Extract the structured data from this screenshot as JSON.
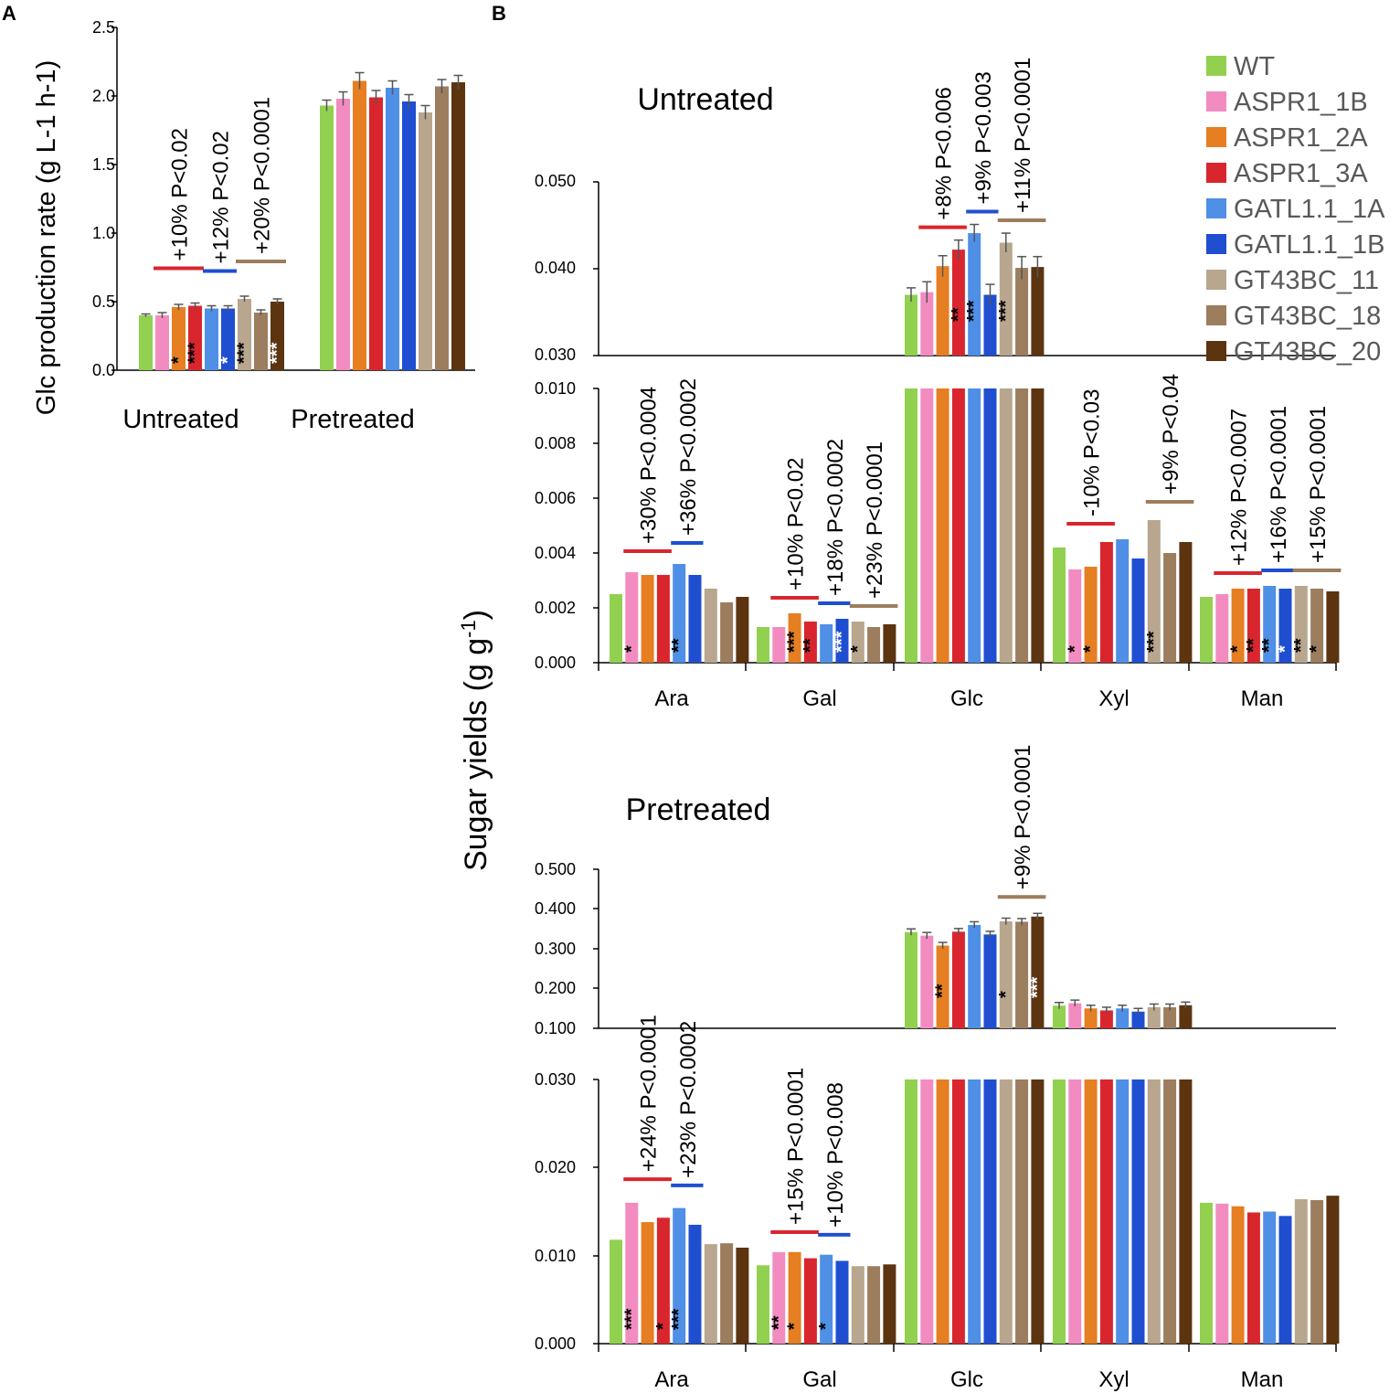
{
  "colors": {
    "series": [
      "#92d050",
      "#f28cc0",
      "#e67e22",
      "#d9262e",
      "#4f8fe6",
      "#1f4fd0",
      "#b8a68e",
      "#9c7d5e",
      "#5c3410"
    ],
    "axis": "#000000",
    "errorbar": "#555555",
    "legend_text": "#595959"
  },
  "panel_labels": {
    "a": "A",
    "b": "B"
  },
  "legend": [
    "WT",
    "ASPR1_1B",
    "ASPR1_2A",
    "ASPR1_3A",
    "GATL1.1_1A",
    "GATL1.1_1B",
    "GT43BC_11",
    "GT43BC_18",
    "GT43BC_20"
  ],
  "panel_a": {
    "ylabel": "Glc production rate (g L-1 h-1)",
    "yticks": [
      "0.0",
      "0.5",
      "1.0",
      "1.5",
      "2.0",
      "2.5"
    ],
    "ylim": [
      0,
      2.5
    ],
    "categories": [
      "Untreated",
      "Pretreated"
    ]
  },
  "panel_b": {
    "ylabel_main": "Sugar yields (g g",
    "ylabel_sup": "-1",
    "ylabel_tail": ")",
    "categories": [
      "Ara",
      "Gal",
      "Glc",
      "Xyl",
      "Man"
    ],
    "untreated": {
      "title": "Untreated",
      "upper_ticks": [
        "0.030",
        "0.040",
        "0.050"
      ],
      "lower_ticks": [
        "0.000",
        "0.002",
        "0.004",
        "0.006",
        "0.008",
        "0.010"
      ]
    },
    "pretreated": {
      "title": "Pretreated",
      "upper_ticks": [
        "0.100",
        "0.200",
        "0.300",
        "0.400",
        "0.500"
      ],
      "lower_ticks": [
        "0.000",
        "0.010",
        "0.020",
        "0.030"
      ]
    }
  },
  "chart_data": [
    {
      "id": "A",
      "type": "bar",
      "title": "",
      "xlabel": "",
      "ylabel": "Glc production rate (g L-1 h-1)",
      "ylim": [
        0,
        2.5
      ],
      "categories": [
        "Untreated",
        "Pretreated"
      ],
      "series_names": [
        "WT",
        "ASPR1_1B",
        "ASPR1_2A",
        "ASPR1_3A",
        "GATL1.1_1A",
        "GATL1.1_1B",
        "GT43BC_11",
        "GT43BC_18",
        "GT43BC_20"
      ],
      "values": [
        [
          0.4,
          0.4,
          0.46,
          0.47,
          0.45,
          0.45,
          0.52,
          0.42,
          0.5
        ],
        [
          1.93,
          1.98,
          2.11,
          1.99,
          2.06,
          1.96,
          1.88,
          2.07,
          2.1
        ]
      ],
      "errors": [
        [
          0.01,
          0.02,
          0.02,
          0.02,
          0.02,
          0.02,
          0.02,
          0.02,
          0.02
        ],
        [
          0.04,
          0.05,
          0.06,
          0.05,
          0.05,
          0.05,
          0.05,
          0.05,
          0.05
        ]
      ],
      "stars": [
        [
          "",
          "",
          "*",
          "***",
          "",
          "*",
          "***",
          "",
          "***"
        ],
        [
          "",
          "",
          "",
          "",
          "",
          "",
          "",
          "",
          ""
        ]
      ],
      "star_colors": [
        [
          "",
          "",
          "black",
          "black",
          "",
          "white",
          "black",
          "",
          "white"
        ],
        [
          "",
          "",
          "",
          "",
          "",
          "",
          "",
          "",
          ""
        ]
      ],
      "brackets": [
        {
          "cat": 0,
          "from": 1,
          "to": 3,
          "color": "#d9262e",
          "label": "+10% P<0.02"
        },
        {
          "cat": 0,
          "from": 4,
          "to": 5,
          "color": "#1f4fd0",
          "label": "+12% P<0.02"
        },
        {
          "cat": 0,
          "from": 6,
          "to": 8,
          "color": "#9c7d5e",
          "label": "+20% P<0.0001"
        }
      ]
    },
    {
      "id": "B-untreated",
      "type": "bar",
      "title": "Untreated",
      "xlabel": "",
      "ylabel": "Sugar yields (g g-1)",
      "axis_break": {
        "lower": [
          0,
          0.01
        ],
        "upper": [
          0.03,
          0.05
        ]
      },
      "categories": [
        "Ara",
        "Gal",
        "Glc",
        "Xyl",
        "Man"
      ],
      "series_names": [
        "WT",
        "ASPR1_1B",
        "ASPR1_2A",
        "ASPR1_3A",
        "GATL1.1_1A",
        "GATL1.1_1B",
        "GT43BC_11",
        "GT43BC_18",
        "GT43BC_20"
      ],
      "values": [
        [
          0.0025,
          0.0033,
          0.0032,
          0.0032,
          0.0036,
          0.0032,
          0.0027,
          0.0022,
          0.0024
        ],
        [
          0.0013,
          0.0013,
          0.0018,
          0.0015,
          0.0014,
          0.0016,
          0.0015,
          0.0013,
          0.0014
        ],
        [
          0.037,
          0.0373,
          0.0403,
          0.0422,
          0.0441,
          0.037,
          0.043,
          0.0401,
          0.0402
        ],
        [
          0.0042,
          0.0034,
          0.0035,
          0.0044,
          0.0045,
          0.0038,
          0.0052,
          0.004,
          0.0044
        ],
        [
          0.0024,
          0.0025,
          0.0027,
          0.0027,
          0.0028,
          0.0027,
          0.0028,
          0.0027,
          0.0026
        ]
      ],
      "errors": [
        [
          0.0002,
          0.0003,
          0.0003,
          0.0003,
          0.0003,
          0.0003,
          0.0003,
          0.0003,
          0.0003
        ],
        [
          0.0001,
          0.0001,
          0.0001,
          0.0001,
          0.0001,
          0.0001,
          0.0001,
          0.0001,
          0.0001
        ],
        [
          0.0008,
          0.0012,
          0.0012,
          0.0011,
          0.001,
          0.0012,
          0.0011,
          0.0013,
          0.0012
        ],
        [
          0.0002,
          0.0002,
          0.0002,
          0.0002,
          0.0002,
          0.0002,
          0.0002,
          0.0002,
          0.0002
        ],
        [
          0.0001,
          0.0001,
          0.0001,
          0.0001,
          0.0001,
          0.0001,
          0.0001,
          0.0001,
          0.0001
        ]
      ],
      "stars": [
        [
          "",
          "*",
          "",
          "",
          "**",
          "",
          "",
          "",
          ""
        ],
        [
          "",
          "",
          "***",
          "**",
          "",
          "***",
          "*",
          "",
          ""
        ],
        [
          "",
          "",
          "",
          "**",
          "***",
          "",
          "***",
          "",
          ""
        ],
        [
          "",
          "*",
          "*",
          "",
          "",
          "",
          "***",
          "",
          ""
        ],
        [
          "",
          "",
          "*",
          "**",
          "**",
          "*",
          "**",
          "*",
          ""
        ]
      ],
      "star_colors": [
        [
          "",
          "black",
          "",
          "",
          "black",
          "",
          "",
          "",
          ""
        ],
        [
          "",
          "",
          "black",
          "black",
          "",
          "white",
          "black",
          "",
          ""
        ],
        [
          "",
          "",
          "",
          "black",
          "black",
          "",
          "black",
          "",
          ""
        ],
        [
          "",
          "black",
          "black",
          "",
          "",
          "",
          "black",
          "",
          ""
        ],
        [
          "",
          "",
          "black",
          "black",
          "black",
          "white",
          "black",
          "black",
          ""
        ]
      ],
      "brackets": [
        {
          "cat": 0,
          "from": 1,
          "to": 3,
          "color": "#d9262e",
          "label": "+30% P<0.0004"
        },
        {
          "cat": 0,
          "from": 4,
          "to": 5,
          "color": "#1f4fd0",
          "label": "+36% P<0.0002"
        },
        {
          "cat": 1,
          "from": 1,
          "to": 3,
          "color": "#d9262e",
          "label": "+10% P<0.02"
        },
        {
          "cat": 1,
          "from": 4,
          "to": 5,
          "color": "#1f4fd0",
          "label": "+18% P<0.0002"
        },
        {
          "cat": 1,
          "from": 6,
          "to": 8,
          "color": "#9c7d5e",
          "label": "+23% P<0.0001"
        },
        {
          "cat": 2,
          "from": 1,
          "to": 3,
          "color": "#d9262e",
          "label": "+8% P<0.006"
        },
        {
          "cat": 2,
          "from": 4,
          "to": 5,
          "color": "#1f4fd0",
          "label": "+9% P<0.003"
        },
        {
          "cat": 2,
          "from": 6,
          "to": 8,
          "color": "#9c7d5e",
          "label": "+11% P<0.0001"
        },
        {
          "cat": 3,
          "from": 1,
          "to": 3,
          "color": "#d9262e",
          "label": "-10% P<0.03"
        },
        {
          "cat": 3,
          "from": 6,
          "to": 8,
          "color": "#9c7d5e",
          "label": "+9% P<0.04"
        },
        {
          "cat": 4,
          "from": 1,
          "to": 3,
          "color": "#d9262e",
          "label": "+12% P<0.0007"
        },
        {
          "cat": 4,
          "from": 4,
          "to": 5,
          "color": "#1f4fd0",
          "label": "+16% P<0.0001"
        },
        {
          "cat": 4,
          "from": 6,
          "to": 8,
          "color": "#9c7d5e",
          "label": "+15% P<0.0001"
        }
      ]
    },
    {
      "id": "B-pretreated",
      "type": "bar",
      "title": "Pretreated",
      "xlabel": "",
      "ylabel": "Sugar yields (g g-1)",
      "axis_break": {
        "lower": [
          0,
          0.03
        ],
        "upper": [
          0.1,
          0.5
        ]
      },
      "categories": [
        "Ara",
        "Gal",
        "Glc",
        "Xyl",
        "Man"
      ],
      "series_names": [
        "WT",
        "ASPR1_1B",
        "ASPR1_2A",
        "ASPR1_3A",
        "GATL1.1_1A",
        "GATL1.1_1B",
        "GT43BC_11",
        "GT43BC_18",
        "GT43BC_20"
      ],
      "values": [
        [
          0.0118,
          0.016,
          0.0138,
          0.0143,
          0.0154,
          0.0135,
          0.0113,
          0.0114,
          0.0109
        ],
        [
          0.0089,
          0.0104,
          0.0104,
          0.0097,
          0.0101,
          0.0094,
          0.0088,
          0.0088,
          0.009
        ],
        [
          0.342,
          0.333,
          0.308,
          0.343,
          0.36,
          0.336,
          0.369,
          0.368,
          0.381
        ],
        [
          0.157,
          0.163,
          0.15,
          0.145,
          0.15,
          0.142,
          0.153,
          0.153,
          0.158
        ],
        [
          0.016,
          0.0159,
          0.0156,
          0.0149,
          0.015,
          0.0145,
          0.0164,
          0.0163,
          0.0168
        ]
      ],
      "errors": [
        [
          0.0005,
          0.0008,
          0.0007,
          0.0007,
          0.0007,
          0.0006,
          0.0007,
          0.0007,
          0.0007
        ],
        [
          0.0003,
          0.0004,
          0.0004,
          0.0003,
          0.0004,
          0.0004,
          0.0003,
          0.0003,
          0.0004
        ],
        [
          0.008,
          0.008,
          0.008,
          0.008,
          0.008,
          0.008,
          0.008,
          0.008,
          0.008
        ],
        [
          0.008,
          0.008,
          0.008,
          0.008,
          0.008,
          0.008,
          0.008,
          0.008,
          0.008
        ],
        [
          0.0006,
          0.0007,
          0.0007,
          0.0007,
          0.0007,
          0.0006,
          0.0007,
          0.0006,
          0.0007
        ]
      ],
      "stars": [
        [
          "",
          "***",
          "",
          "*",
          "***",
          "",
          "",
          "",
          ""
        ],
        [
          "",
          "**",
          "*",
          "",
          "*",
          "",
          "",
          "",
          ""
        ],
        [
          "",
          "",
          "**",
          "",
          "",
          "",
          "*",
          "",
          "***"
        ],
        [
          "",
          "",
          "",
          "",
          "",
          "",
          "",
          "",
          ""
        ],
        [
          "",
          "",
          "",
          "",
          "",
          "",
          "",
          "",
          ""
        ]
      ],
      "star_colors": [
        [
          "",
          "black",
          "",
          "black",
          "black",
          "",
          "",
          "",
          ""
        ],
        [
          "",
          "black",
          "black",
          "",
          "black",
          "",
          "",
          "",
          ""
        ],
        [
          "",
          "",
          "black",
          "",
          "",
          "",
          "black",
          "",
          "white"
        ],
        [
          "",
          "",
          "",
          "",
          "",
          "",
          "",
          "",
          ""
        ],
        [
          "",
          "",
          "",
          "",
          "",
          "",
          "",
          "",
          ""
        ]
      ],
      "brackets": [
        {
          "cat": 0,
          "from": 1,
          "to": 3,
          "color": "#d9262e",
          "label": "+24% P<0.0001"
        },
        {
          "cat": 0,
          "from": 4,
          "to": 5,
          "color": "#1f4fd0",
          "label": "+23% P<0.0002"
        },
        {
          "cat": 1,
          "from": 1,
          "to": 3,
          "color": "#d9262e",
          "label": "+15% P<0.0001"
        },
        {
          "cat": 1,
          "from": 4,
          "to": 5,
          "color": "#1f4fd0",
          "label": "+10% P<0.008"
        },
        {
          "cat": 2,
          "from": 6,
          "to": 8,
          "color": "#9c7d5e",
          "label": "+9% P<0.0001"
        }
      ]
    }
  ]
}
